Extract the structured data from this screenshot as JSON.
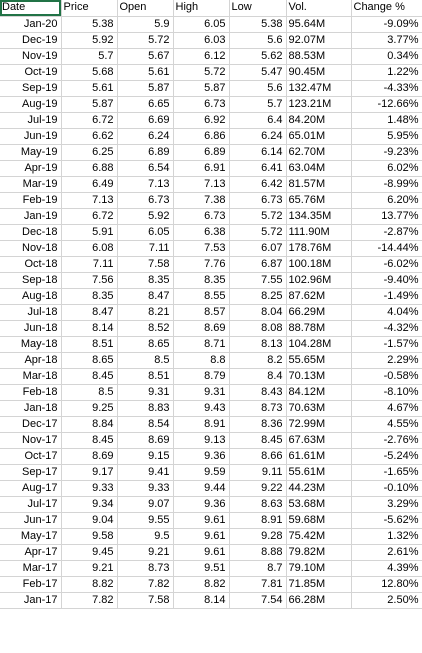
{
  "columns": [
    "Date",
    "Price",
    "Open",
    "High",
    "Low",
    "Vol.",
    "Change %"
  ],
  "rows": [
    [
      "Jan-20",
      "5.38",
      "5.9",
      "6.05",
      "5.38",
      "95.64M",
      "-9.09%"
    ],
    [
      "Dec-19",
      "5.92",
      "5.72",
      "6.03",
      "5.6",
      "92.07M",
      "3.77%"
    ],
    [
      "Nov-19",
      "5.7",
      "5.67",
      "6.12",
      "5.62",
      "88.53M",
      "0.34%"
    ],
    [
      "Oct-19",
      "5.68",
      "5.61",
      "5.72",
      "5.47",
      "90.45M",
      "1.22%"
    ],
    [
      "Sep-19",
      "5.61",
      "5.87",
      "5.87",
      "5.6",
      "132.47M",
      "-4.33%"
    ],
    [
      "Aug-19",
      "5.87",
      "6.65",
      "6.73",
      "5.7",
      "123.21M",
      "-12.66%"
    ],
    [
      "Jul-19",
      "6.72",
      "6.69",
      "6.92",
      "6.4",
      "84.20M",
      "1.48%"
    ],
    [
      "Jun-19",
      "6.62",
      "6.24",
      "6.86",
      "6.24",
      "65.01M",
      "5.95%"
    ],
    [
      "May-19",
      "6.25",
      "6.89",
      "6.89",
      "6.14",
      "62.70M",
      "-9.23%"
    ],
    [
      "Apr-19",
      "6.88",
      "6.54",
      "6.91",
      "6.41",
      "63.04M",
      "6.02%"
    ],
    [
      "Mar-19",
      "6.49",
      "7.13",
      "7.13",
      "6.42",
      "81.57M",
      "-8.99%"
    ],
    [
      "Feb-19",
      "7.13",
      "6.73",
      "7.38",
      "6.73",
      "65.76M",
      "6.20%"
    ],
    [
      "Jan-19",
      "6.72",
      "5.92",
      "6.73",
      "5.72",
      "134.35M",
      "13.77%"
    ],
    [
      "Dec-18",
      "5.91",
      "6.05",
      "6.38",
      "5.72",
      "111.90M",
      "-2.87%"
    ],
    [
      "Nov-18",
      "6.08",
      "7.11",
      "7.53",
      "6.07",
      "178.76M",
      "-14.44%"
    ],
    [
      "Oct-18",
      "7.11",
      "7.58",
      "7.76",
      "6.87",
      "100.18M",
      "-6.02%"
    ],
    [
      "Sep-18",
      "7.56",
      "8.35",
      "8.35",
      "7.55",
      "102.96M",
      "-9.40%"
    ],
    [
      "Aug-18",
      "8.35",
      "8.47",
      "8.55",
      "8.25",
      "87.62M",
      "-1.49%"
    ],
    [
      "Jul-18",
      "8.47",
      "8.21",
      "8.57",
      "8.04",
      "66.29M",
      "4.04%"
    ],
    [
      "Jun-18",
      "8.14",
      "8.52",
      "8.69",
      "8.08",
      "88.78M",
      "-4.32%"
    ],
    [
      "May-18",
      "8.51",
      "8.65",
      "8.71",
      "8.13",
      "104.28M",
      "-1.57%"
    ],
    [
      "Apr-18",
      "8.65",
      "8.5",
      "8.8",
      "8.2",
      "55.65M",
      "2.29%"
    ],
    [
      "Mar-18",
      "8.45",
      "8.51",
      "8.79",
      "8.4",
      "70.13M",
      "-0.58%"
    ],
    [
      "Feb-18",
      "8.5",
      "9.31",
      "9.31",
      "8.43",
      "84.12M",
      "-8.10%"
    ],
    [
      "Jan-18",
      "9.25",
      "8.83",
      "9.43",
      "8.73",
      "70.63M",
      "4.67%"
    ],
    [
      "Dec-17",
      "8.84",
      "8.54",
      "8.91",
      "8.36",
      "72.99M",
      "4.55%"
    ],
    [
      "Nov-17",
      "8.45",
      "8.69",
      "9.13",
      "8.45",
      "67.63M",
      "-2.76%"
    ],
    [
      "Oct-17",
      "8.69",
      "9.15",
      "9.36",
      "8.66",
      "61.61M",
      "-5.24%"
    ],
    [
      "Sep-17",
      "9.17",
      "9.41",
      "9.59",
      "9.11",
      "55.61M",
      "-1.65%"
    ],
    [
      "Aug-17",
      "9.33",
      "9.33",
      "9.44",
      "9.22",
      "44.23M",
      "-0.10%"
    ],
    [
      "Jul-17",
      "9.34",
      "9.07",
      "9.36",
      "8.63",
      "53.68M",
      "3.29%"
    ],
    [
      "Jun-17",
      "9.04",
      "9.55",
      "9.61",
      "8.91",
      "59.68M",
      "-5.62%"
    ],
    [
      "May-17",
      "9.58",
      "9.5",
      "9.61",
      "9.28",
      "75.42M",
      "1.32%"
    ],
    [
      "Apr-17",
      "9.45",
      "9.21",
      "9.61",
      "8.88",
      "79.82M",
      "2.61%"
    ],
    [
      "Mar-17",
      "9.21",
      "8.73",
      "9.51",
      "8.7",
      "79.10M",
      "4.39%"
    ],
    [
      "Feb-17",
      "8.82",
      "7.82",
      "8.82",
      "7.81",
      "71.85M",
      "12.80%"
    ],
    [
      "Jan-17",
      "7.82",
      "7.58",
      "8.14",
      "7.54",
      "66.28M",
      "2.50%"
    ]
  ]
}
